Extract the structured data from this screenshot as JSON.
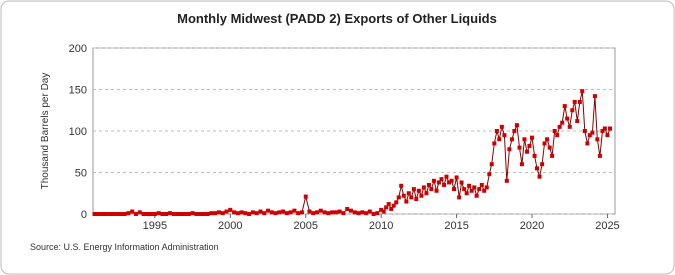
{
  "chart_data": {
    "type": "line",
    "title": "Monthly Midwest (PADD 2) Exports of Other Liquids",
    "y_label": "Thousand Barrels per Day",
    "source": "Source: U.S. Energy Information Administration",
    "color": "#cc0000",
    "line_color": "#8b0000",
    "xlim": [
      1990.9,
      2025.5
    ],
    "xticks": [
      1995,
      2000,
      2005,
      2010,
      2015,
      2020,
      2025
    ],
    "ylim": [
      0,
      200
    ],
    "yticks": [
      0,
      50,
      100,
      150,
      200
    ],
    "grid": true,
    "x": [
      1991,
      1991.25,
      1991.5,
      1991.75,
      1992,
      1992.25,
      1992.5,
      1992.75,
      1993,
      1993.25,
      1993.5,
      1993.75,
      1994,
      1994.25,
      1994.5,
      1994.75,
      1995,
      1995.25,
      1995.5,
      1995.75,
      1996,
      1996.25,
      1996.5,
      1996.75,
      1997,
      1997.25,
      1997.5,
      1997.75,
      1998,
      1998.25,
      1998.5,
      1998.75,
      1999,
      1999.25,
      1999.5,
      1999.75,
      2000,
      2000.25,
      2000.5,
      2000.75,
      2001,
      2001.25,
      2001.5,
      2001.75,
      2002,
      2002.25,
      2002.5,
      2002.75,
      2003,
      2003.25,
      2003.5,
      2003.75,
      2004,
      2004.25,
      2004.5,
      2004.75,
      2005,
      2005.25,
      2005.5,
      2005.75,
      2006,
      2006.25,
      2006.5,
      2006.75,
      2007,
      2007.25,
      2007.5,
      2007.75,
      2008,
      2008.25,
      2008.5,
      2008.75,
      2009,
      2009.25,
      2009.5,
      2009.75,
      2010,
      2010.17,
      2010.33,
      2010.5,
      2010.67,
      2010.83,
      2011,
      2011.17,
      2011.33,
      2011.5,
      2011.67,
      2011.83,
      2012,
      2012.17,
      2012.33,
      2012.5,
      2012.67,
      2012.83,
      2013,
      2013.17,
      2013.33,
      2013.5,
      2013.67,
      2013.83,
      2014,
      2014.17,
      2014.33,
      2014.5,
      2014.67,
      2014.83,
      2015,
      2015.17,
      2015.33,
      2015.5,
      2015.67,
      2015.83,
      2016,
      2016.17,
      2016.33,
      2016.5,
      2016.67,
      2016.83,
      2017,
      2017.17,
      2017.33,
      2017.5,
      2017.67,
      2017.83,
      2018,
      2018.17,
      2018.33,
      2018.5,
      2018.67,
      2018.83,
      2019,
      2019.17,
      2019.33,
      2019.5,
      2019.67,
      2019.83,
      2020,
      2020.17,
      2020.33,
      2020.5,
      2020.67,
      2020.83,
      2021,
      2021.17,
      2021.33,
      2021.5,
      2021.67,
      2021.83,
      2022,
      2022.17,
      2022.33,
      2022.5,
      2022.67,
      2022.83,
      2023,
      2023.17,
      2023.33,
      2023.5,
      2023.67,
      2023.83,
      2024,
      2024.17,
      2024.33,
      2024.5,
      2024.67,
      2024.83,
      2025,
      2025.17
    ],
    "values": [
      0,
      0,
      0,
      0,
      0,
      0,
      0,
      0,
      0,
      1,
      3,
      0,
      2,
      0,
      0,
      0,
      0,
      1,
      0,
      0,
      1,
      0,
      0,
      0,
      0,
      0,
      1,
      0,
      0,
      0,
      0,
      1,
      1,
      2,
      1,
      3,
      5,
      2,
      1,
      2,
      1,
      0,
      2,
      1,
      3,
      1,
      4,
      2,
      1,
      2,
      3,
      1,
      2,
      4,
      1,
      2,
      21,
      3,
      1,
      2,
      4,
      2,
      1,
      2,
      2,
      3,
      1,
      6,
      4,
      2,
      1,
      2,
      1,
      3,
      0,
      1,
      5,
      3,
      8,
      12,
      6,
      10,
      14,
      20,
      34,
      22,
      15,
      25,
      20,
      30,
      18,
      28,
      22,
      32,
      25,
      35,
      30,
      40,
      28,
      38,
      42,
      35,
      45,
      38,
      40,
      30,
      44,
      20,
      38,
      30,
      25,
      34,
      28,
      32,
      22,
      30,
      35,
      28,
      32,
      48,
      60,
      85,
      100,
      90,
      105,
      95,
      40,
      78,
      90,
      100,
      107,
      80,
      60,
      90,
      75,
      82,
      92,
      70,
      55,
      45,
      60,
      85,
      90,
      80,
      70,
      100,
      95,
      105,
      110,
      130,
      115,
      105,
      125,
      135,
      112,
      135,
      148,
      100,
      85,
      95,
      98,
      142,
      90,
      70,
      100,
      103,
      95,
      103
    ]
  }
}
